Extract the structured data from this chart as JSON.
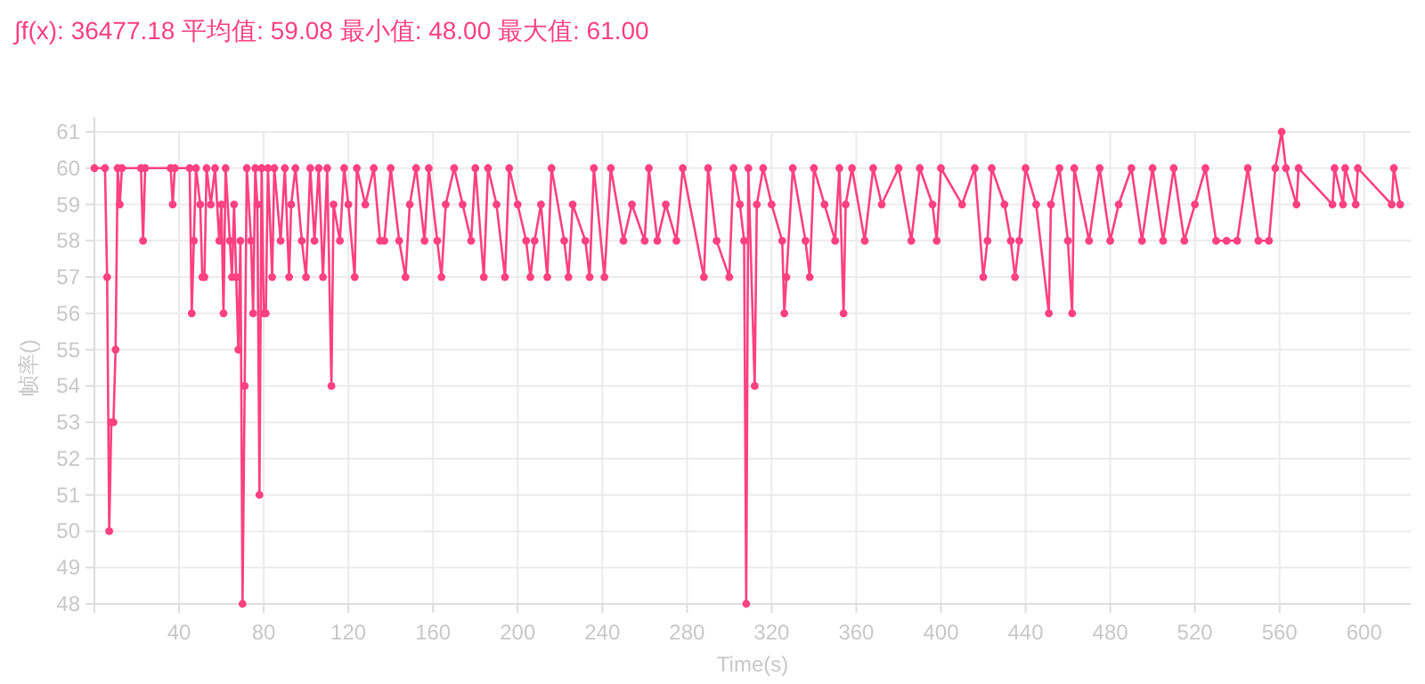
{
  "chart_data": {
    "type": "line",
    "title": "∫f(x): 36477.18 平均值: 59.08 最小值: 48.00 最大值: 61.00",
    "xlabel": "Time(s)",
    "ylabel": "帧率()",
    "xlim": [
      0,
      622
    ],
    "ylim": [
      48,
      61
    ],
    "xticks": [
      {
        "value": 0,
        "label": null
      },
      40,
      80,
      120,
      160,
      200,
      240,
      280,
      320,
      360,
      400,
      440,
      480,
      520,
      560,
      600
    ],
    "yticks": [
      48,
      49,
      50,
      51,
      52,
      53,
      54,
      55,
      56,
      57,
      58,
      59,
      60,
      61
    ],
    "grid": true,
    "marker": "circle",
    "line_style": "solid",
    "series": [
      {
        "color": "#ff4081",
        "x": [
          0,
          5,
          6,
          7,
          8,
          9,
          10,
          11,
          12,
          13,
          22,
          23,
          24,
          36,
          37,
          38,
          45,
          46,
          47,
          48,
          50,
          51,
          52,
          53,
          55,
          57,
          59,
          60,
          61,
          62,
          64,
          65,
          66,
          67,
          68,
          69,
          70,
          71,
          72,
          74,
          75,
          76,
          77,
          78,
          79,
          80,
          81,
          82,
          84,
          85,
          88,
          90,
          92,
          93,
          95,
          98,
          100,
          102,
          104,
          106,
          108,
          110,
          112,
          113,
          116,
          118,
          120,
          123,
          124,
          128,
          132,
          135,
          137,
          140,
          144,
          147,
          149,
          152,
          156,
          158,
          162,
          164,
          166,
          170,
          174,
          178,
          180,
          184,
          186,
          190,
          194,
          196,
          200,
          204,
          206,
          208,
          211,
          214,
          216,
          222,
          224,
          226,
          232,
          234,
          236,
          241,
          244,
          250,
          254,
          260,
          262,
          266,
          270,
          275,
          278,
          288,
          290,
          294,
          300,
          302,
          305,
          307,
          308,
          309,
          312,
          313,
          316,
          320,
          325,
          326,
          327,
          330,
          336,
          338,
          340,
          345,
          350,
          352,
          354,
          355,
          358,
          364,
          368,
          372,
          380,
          386,
          390,
          396,
          398,
          400,
          410,
          416,
          420,
          422,
          424,
          430,
          433,
          435,
          437,
          440,
          445,
          451,
          452,
          456,
          460,
          462,
          463,
          470,
          475,
          480,
          484,
          490,
          495,
          500,
          505,
          510,
          515,
          520,
          525,
          530,
          535,
          540,
          545,
          550,
          555,
          558,
          561,
          563,
          568,
          569,
          585,
          586,
          590,
          591,
          596,
          597,
          613,
          614,
          617
        ],
        "values": [
          60,
          60,
          57,
          50,
          53,
          53,
          55,
          60,
          59,
          60,
          60,
          58,
          60,
          60,
          59,
          60,
          60,
          56,
          58,
          60,
          59,
          57,
          57,
          60,
          59,
          60,
          58,
          59,
          56,
          60,
          58,
          57,
          59,
          57,
          55,
          58,
          48,
          54,
          60,
          58,
          56,
          60,
          59,
          51,
          60,
          56,
          56,
          60,
          57,
          60,
          58,
          60,
          57,
          59,
          60,
          58,
          57,
          60,
          58,
          60,
          57,
          60,
          54,
          59,
          58,
          60,
          59,
          57,
          60,
          59,
          60,
          58,
          58,
          60,
          58,
          57,
          59,
          60,
          58,
          60,
          58,
          57,
          59,
          60,
          59,
          58,
          60,
          57,
          60,
          59,
          57,
          60,
          59,
          58,
          57,
          58,
          59,
          57,
          60,
          58,
          57,
          59,
          58,
          57,
          60,
          57,
          60,
          58,
          59,
          58,
          60,
          58,
          59,
          58,
          60,
          57,
          60,
          58,
          57,
          60,
          59,
          58,
          48,
          60,
          54,
          59,
          60,
          59,
          58,
          56,
          57,
          60,
          58,
          57,
          60,
          59,
          58,
          60,
          56,
          59,
          60,
          58,
          60,
          59,
          60,
          58,
          60,
          59,
          58,
          60,
          59,
          60,
          57,
          58,
          60,
          59,
          58,
          57,
          58,
          60,
          59,
          56,
          59,
          60,
          58,
          56,
          60,
          58,
          60,
          58,
          59,
          60,
          58,
          60,
          58,
          60,
          58,
          59,
          60,
          58,
          58,
          58,
          60,
          58,
          58,
          60,
          61,
          60,
          59,
          60,
          59,
          60,
          59,
          60,
          59,
          60,
          59,
          60,
          59
        ]
      }
    ]
  }
}
